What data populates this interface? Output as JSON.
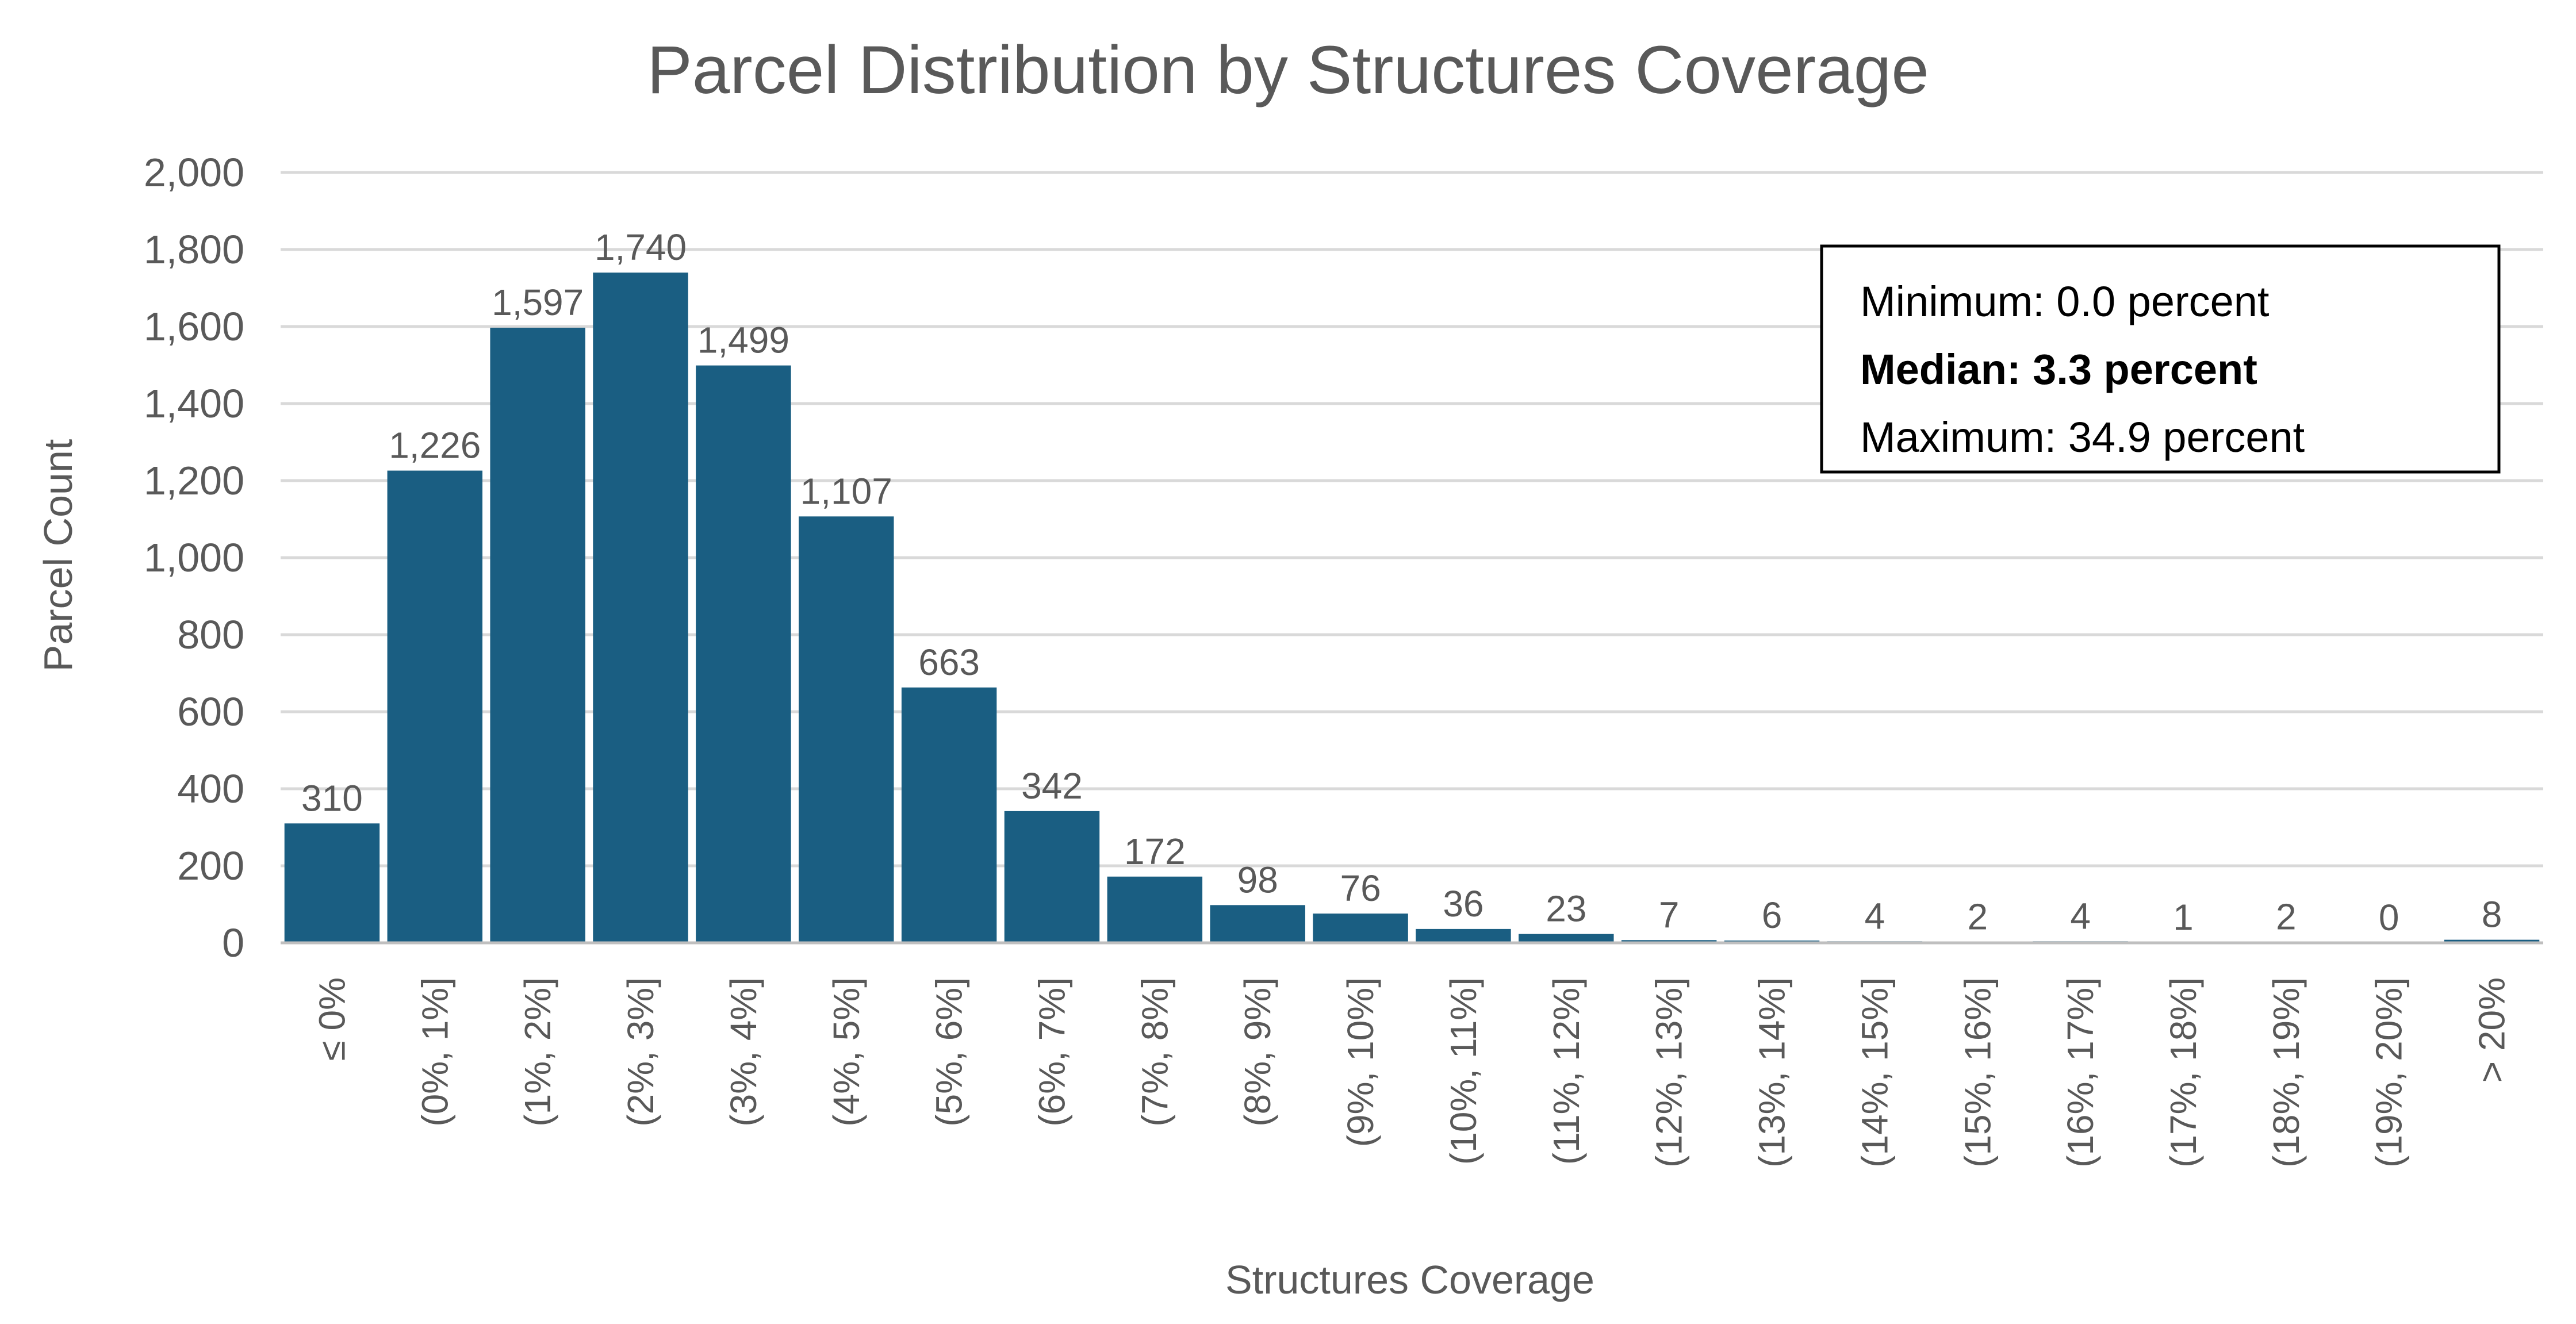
{
  "chart_data": {
    "type": "bar",
    "title": "Parcel Distribution by Structures Coverage",
    "xlabel": "Structures Coverage",
    "ylabel": "Parcel Count",
    "ylim": [
      0,
      2000
    ],
    "y_ticks": [
      0,
      200,
      400,
      600,
      800,
      1000,
      1200,
      1400,
      1600,
      1800,
      2000
    ],
    "y_tick_labels": [
      "0",
      "200",
      "400",
      "600",
      "800",
      "1,000",
      "1,200",
      "1,400",
      "1,600",
      "1,800",
      "2,000"
    ],
    "grid": true,
    "legend": "none",
    "categories": [
      "≤ 0%",
      "(0%, 1%]",
      "(1%, 2%]",
      "(2%, 3%]",
      "(3%, 4%]",
      "(4%, 5%]",
      "(5%, 6%]",
      "(6%, 7%]",
      "(7%, 8%]",
      "(8%, 9%]",
      "(9%, 10%]",
      "(10%, 11%]",
      "(11%, 12%]",
      "(12%, 13%]",
      "(13%, 14%]",
      "(14%, 15%]",
      "(15%, 16%]",
      "(16%, 17%]",
      "(17%, 18%]",
      "(18%, 19%]",
      "(19%, 20%]",
      "> 20%"
    ],
    "values": [
      310,
      1226,
      1597,
      1740,
      1499,
      1107,
      663,
      342,
      172,
      98,
      76,
      36,
      23,
      7,
      6,
      4,
      2,
      4,
      1,
      2,
      0,
      8
    ],
    "data_labels": [
      "310",
      "1,226",
      "1,597",
      "1,740",
      "1,499",
      "1,107",
      "663",
      "342",
      "172",
      "98",
      "76",
      "36",
      "23",
      "7",
      "6",
      "4",
      "2",
      "4",
      "1",
      "2",
      "0",
      "8"
    ],
    "bar_color": "#1A5E82",
    "annotations": {
      "stats": [
        {
          "text": "Minimum: 0.0 percent",
          "bold": false
        },
        {
          "text": "Median: 3.3 percent",
          "bold": true
        },
        {
          "text": "Maximum: 34.9 percent",
          "bold": false
        }
      ]
    }
  },
  "colors": {
    "bar": "#1A5E82",
    "text": "#595959",
    "gridline": "#D9D9D9",
    "axis": "#BFBFBF",
    "stats_border": "#000000"
  }
}
